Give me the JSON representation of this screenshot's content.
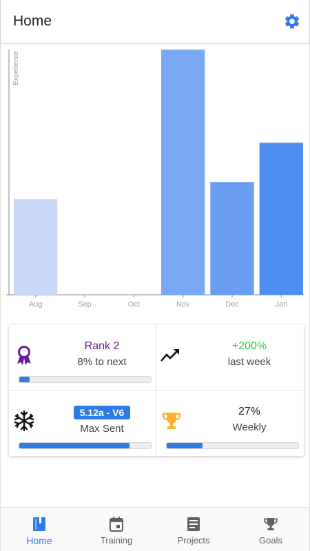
{
  "appbar": {
    "title": "Home",
    "settings_icon": "gear-icon"
  },
  "colors": {
    "accent": "#2f7be6",
    "rank": "#6a1b9a",
    "positive": "#2ecc40",
    "trophy": "#f9b42d"
  },
  "chart_data": {
    "type": "bar",
    "ylabel": "Experience",
    "categories": [
      "Aug",
      "Sep",
      "Oct",
      "Nov",
      "Dec",
      "Jan"
    ],
    "values": [
      39,
      0,
      0,
      100,
      46,
      62
    ],
    "ylim": [
      0,
      100
    ],
    "bar_colors": [
      "#c9d9f7",
      "#c9d9f7",
      "#c9d9f7",
      "#7aa8f3",
      "#6a9ef3",
      "#4f8df2"
    ],
    "grid": false
  },
  "stats": {
    "rank": {
      "title": "Rank 2",
      "subtitle": "8% to next",
      "progress": 0.08,
      "icon": "award-ribbon-icon"
    },
    "trend": {
      "title": "+200%",
      "subtitle": "last week",
      "icon": "trending-up-icon"
    },
    "max_sent": {
      "grade": "5.12a - V6",
      "subtitle": "Max Sent",
      "progress": 0.84,
      "icon": "snowflake-icon"
    },
    "weekly": {
      "title": "27%",
      "subtitle": "Weekly",
      "progress": 0.27,
      "icon": "trophy-icon"
    }
  },
  "nav": {
    "items": [
      {
        "label": "Home",
        "icon": "book-icon",
        "active": true
      },
      {
        "label": "Training",
        "icon": "calendar-icon",
        "active": false
      },
      {
        "label": "Projects",
        "icon": "list-icon",
        "active": false
      },
      {
        "label": "Goals",
        "icon": "trophy-icon",
        "active": false
      }
    ]
  }
}
